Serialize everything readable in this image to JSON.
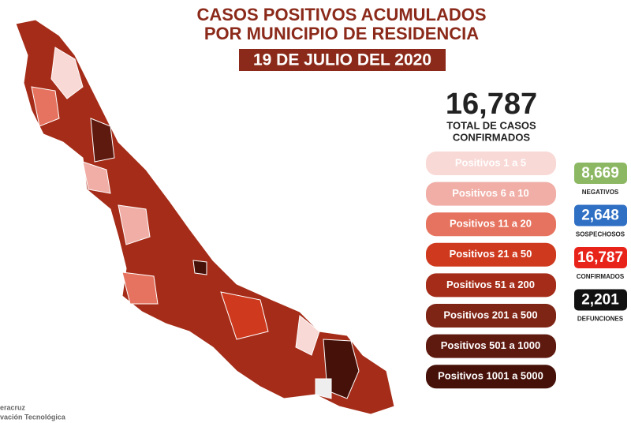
{
  "header": {
    "title_lines": [
      "CASOS POSITIVOS ACUMULADOS",
      "POR MUNICIPIO DE RESIDENCIA"
    ],
    "date": "19 DE JULIO DEL 2020"
  },
  "total": {
    "value": "16,787",
    "label_lines": [
      "TOTAL DE CASOS",
      "CONFIRMADOS"
    ]
  },
  "legend": [
    {
      "label": "Positivos 1 a 5",
      "color": "#f8d9d6"
    },
    {
      "label": "Positivos 6 a 10",
      "color": "#f0aea6"
    },
    {
      "label": "Positivos 11 a 20",
      "color": "#e6735f"
    },
    {
      "label": "Positivos 21 a 50",
      "color": "#cf3a1f"
    },
    {
      "label": "Positivos 51 a 200",
      "color": "#a52c18"
    },
    {
      "label": "Positivos 201 a 500",
      "color": "#7f2515"
    },
    {
      "label": "Positivos 501 a 1000",
      "color": "#5f1a10"
    },
    {
      "label": "Positivos 1001 a 5000",
      "color": "#461109"
    }
  ],
  "stats": [
    {
      "value": "8,669",
      "label": "NEGATIVOS",
      "color": "#8db863"
    },
    {
      "value": "2,648",
      "label": "SOSPECHOSOS",
      "color": "#2f6fc4"
    },
    {
      "value": "16,787",
      "label": "CONFIRMADOS",
      "color": "#e8231a"
    },
    {
      "value": "2,201",
      "label": "DEFUNCIONES",
      "color": "#111111"
    }
  ],
  "footer": [
    "eracruz",
    "vación Tecnológica"
  ]
}
